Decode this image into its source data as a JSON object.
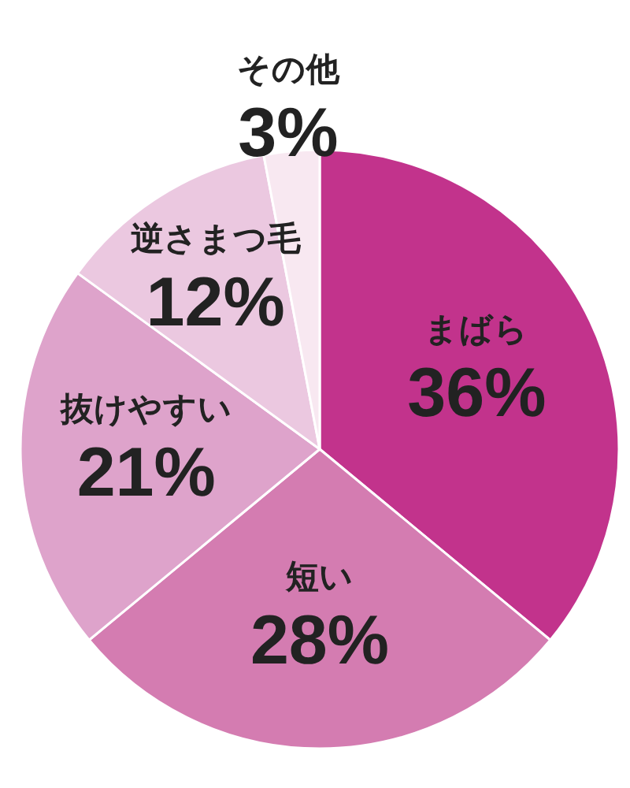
{
  "chart_data": {
    "type": "pie",
    "categories": [
      "まばら",
      "短い",
      "抜けやすい",
      "逆さまつ毛",
      "その他"
    ],
    "values": [
      36,
      28,
      21,
      12,
      3
    ],
    "value_labels": [
      "36%",
      "28%",
      "21%",
      "12%",
      "3%"
    ],
    "colors": [
      "#c2338c",
      "#d47cb1",
      "#dea3cb",
      "#ebc8e0",
      "#f8e8f1"
    ]
  }
}
